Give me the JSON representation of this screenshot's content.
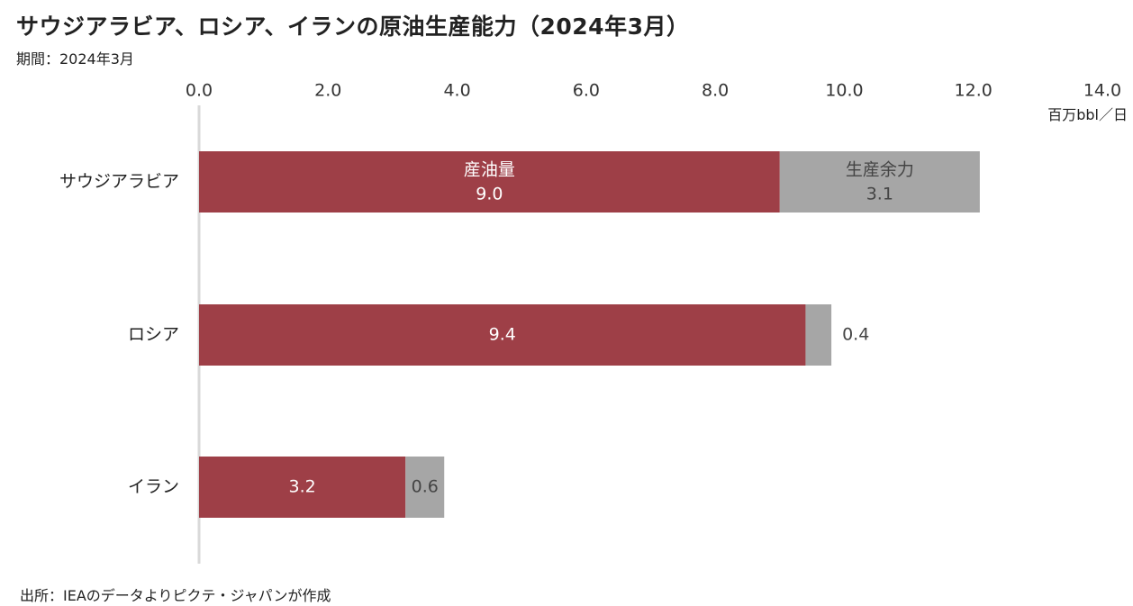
{
  "title": "サウジアラビア、ロシア、イランの原油生産能力（2024年3月）",
  "subtitle": "期間：2024年3月",
  "source": "出所：IEAのデータよりピクテ・ジャパンが作成",
  "chart_data": {
    "type": "bar",
    "orientation": "horizontal",
    "stacked": true,
    "categories": [
      "サウジアラビア",
      "ロシア",
      "イラン"
    ],
    "series": [
      {
        "name": "産油量",
        "values": [
          9.0,
          9.4,
          3.2
        ],
        "labels": [
          "9.0",
          "9.4",
          "3.2"
        ],
        "color": "#9e3f47"
      },
      {
        "name": "生産余力",
        "values": [
          3.1,
          0.4,
          0.6
        ],
        "labels": [
          "3.1",
          "0.4",
          "0.6"
        ],
        "color": "#a6a6a6"
      }
    ],
    "xlim": [
      0,
      14
    ],
    "xticks": [
      "0.0",
      "2.0",
      "4.0",
      "6.0",
      "8.0",
      "10.0",
      "12.0",
      "14.0"
    ],
    "xlabel": "百万bbl／日",
    "axis_position": "top",
    "grid": false,
    "legend": "inline-first-bar"
  }
}
